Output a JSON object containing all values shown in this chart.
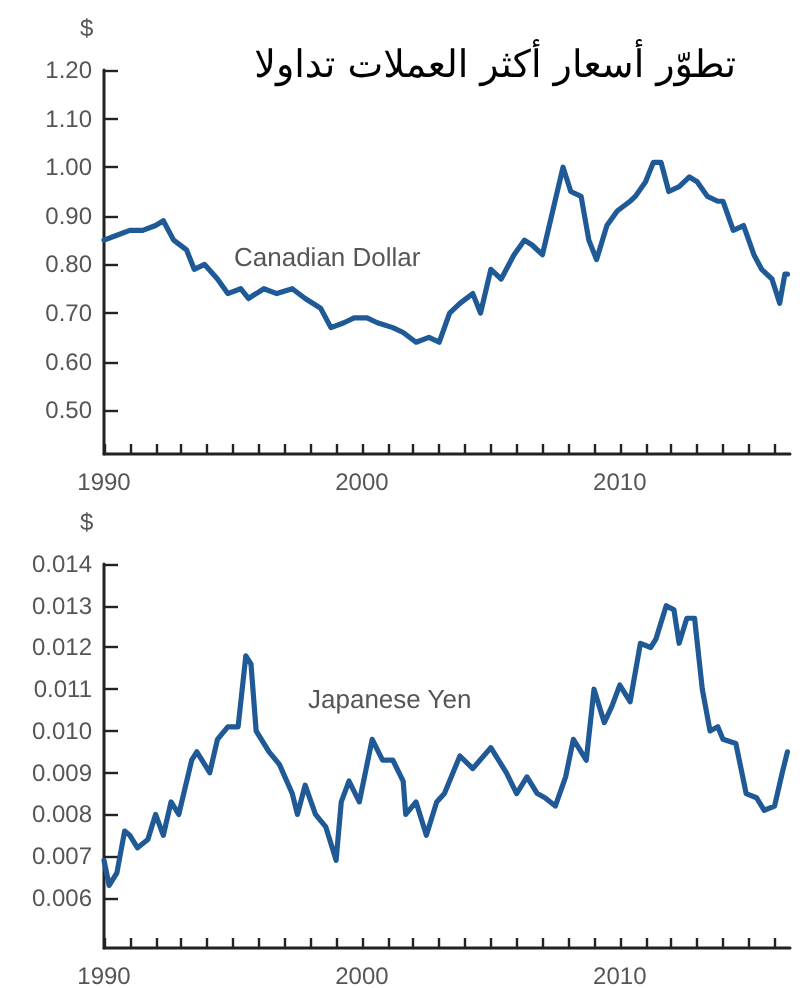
{
  "chart_data": [
    {
      "type": "line",
      "title": "تطوّر أسعار أكثر العملات تداولا",
      "ylabel": "$",
      "xlim": [
        1990,
        2016.6
      ],
      "ylim": [
        0.41,
        1.2
      ],
      "xticks": [
        1990,
        {
          "value": 1991,
          "label": null
        },
        {
          "value": 1992,
          "label": null
        },
        {
          "value": 1993,
          "label": null
        },
        {
          "value": 1994,
          "label": null
        },
        {
          "value": 1995,
          "label": null
        },
        {
          "value": 1996,
          "label": null
        },
        {
          "value": 1997,
          "label": null
        },
        {
          "value": 1998,
          "label": null
        },
        {
          "value": 1999,
          "label": null
        },
        2000,
        {
          "value": 2001,
          "label": null
        },
        {
          "value": 2002,
          "label": null
        },
        {
          "value": 2003,
          "label": null
        },
        {
          "value": 2004,
          "label": null
        },
        {
          "value": 2005,
          "label": null
        },
        {
          "value": 2006,
          "label": null
        },
        {
          "value": 2007,
          "label": null
        },
        {
          "value": 2008,
          "label": null
        },
        {
          "value": 2009,
          "label": null
        },
        2010,
        {
          "value": 2011,
          "label": null
        },
        {
          "value": 2012,
          "label": null
        },
        {
          "value": 2013,
          "label": null
        },
        {
          "value": 2014,
          "label": null
        },
        {
          "value": 2015,
          "label": null
        },
        {
          "value": 2016,
          "label": null
        }
      ],
      "yticks": [
        {
          "value": 0.5,
          "label": "0.50"
        },
        {
          "value": 0.6,
          "label": "0.60"
        },
        {
          "value": 0.7,
          "label": "0.70"
        },
        {
          "value": 0.8,
          "label": "0.80"
        },
        {
          "value": 0.9,
          "label": "0.90"
        },
        {
          "value": 1.0,
          "label": "1.00"
        },
        {
          "value": 1.1,
          "label": "1.10"
        },
        {
          "value": 1.2,
          "label": "1.20"
        }
      ],
      "grid": false,
      "legend": false,
      "marker": "none",
      "line_style": "solid",
      "series": [
        {
          "name": "Canadian Dollar",
          "color": "#1f5a96",
          "x": [
            1990,
            1990.5,
            1991,
            1991.5,
            1992,
            1992.3,
            1992.7,
            1993.2,
            1993.5,
            1993.9,
            1994.4,
            1994.8,
            1995.3,
            1995.6,
            1996.2,
            1996.7,
            1997.3,
            1997.8,
            1998.4,
            1998.8,
            1999.3,
            1999.7,
            2000.2,
            2000.6,
            2001.2,
            2001.6,
            2002.1,
            2002.6,
            2003.0,
            2003.4,
            2003.8,
            2004.3,
            2004.6,
            2005.0,
            2005.4,
            2005.9,
            2006.3,
            2006.6,
            2007.0,
            2007.4,
            2007.8,
            2008.1,
            2008.5,
            2008.8,
            2009.1,
            2009.5,
            2009.9,
            2010.4,
            2010.6,
            2011.0,
            2011.3,
            2011.6,
            2011.9,
            2012.3,
            2012.7,
            2013.0,
            2013.4,
            2013.8,
            2014.0,
            2014.4,
            2014.8,
            2015.2,
            2015.5,
            2015.9,
            2016.2,
            2016.4,
            2016.5
          ],
          "values": [
            0.85,
            0.86,
            0.87,
            0.87,
            0.88,
            0.89,
            0.85,
            0.83,
            0.79,
            0.8,
            0.77,
            0.74,
            0.75,
            0.73,
            0.75,
            0.74,
            0.75,
            0.73,
            0.71,
            0.67,
            0.68,
            0.69,
            0.69,
            0.68,
            0.67,
            0.66,
            0.64,
            0.65,
            0.64,
            0.7,
            0.72,
            0.74,
            0.7,
            0.79,
            0.77,
            0.82,
            0.85,
            0.84,
            0.82,
            0.91,
            1.0,
            0.95,
            0.94,
            0.85,
            0.81,
            0.88,
            0.91,
            0.93,
            0.94,
            0.97,
            1.01,
            1.01,
            0.95,
            0.96,
            0.98,
            0.97,
            0.94,
            0.93,
            0.93,
            0.87,
            0.88,
            0.82,
            0.79,
            0.77,
            0.72,
            0.78,
            0.78
          ]
        }
      ]
    },
    {
      "type": "line",
      "ylabel": "$",
      "xlim": [
        1990,
        2016.6
      ],
      "ylim": [
        0.0048,
        0.014
      ],
      "xticks": [
        1990,
        {
          "value": 1991,
          "label": null
        },
        {
          "value": 1992,
          "label": null
        },
        {
          "value": 1993,
          "label": null
        },
        {
          "value": 1994,
          "label": null
        },
        {
          "value": 1995,
          "label": null
        },
        {
          "value": 1996,
          "label": null
        },
        {
          "value": 1997,
          "label": null
        },
        {
          "value": 1998,
          "label": null
        },
        {
          "value": 1999,
          "label": null
        },
        2000,
        {
          "value": 2001,
          "label": null
        },
        {
          "value": 2002,
          "label": null
        },
        {
          "value": 2003,
          "label": null
        },
        {
          "value": 2004,
          "label": null
        },
        {
          "value": 2005,
          "label": null
        },
        {
          "value": 2006,
          "label": null
        },
        {
          "value": 2007,
          "label": null
        },
        {
          "value": 2008,
          "label": null
        },
        {
          "value": 2009,
          "label": null
        },
        2010,
        {
          "value": 2011,
          "label": null
        },
        {
          "value": 2012,
          "label": null
        },
        {
          "value": 2013,
          "label": null
        },
        {
          "value": 2014,
          "label": null
        },
        {
          "value": 2015,
          "label": null
        },
        {
          "value": 2016,
          "label": null
        }
      ],
      "yticks": [
        0.006,
        0.007,
        0.008,
        0.009,
        {
          "value": 0.01,
          "label": "0.010"
        },
        0.011,
        0.012,
        0.013,
        0.014
      ],
      "grid": false,
      "legend": false,
      "marker": "none",
      "line_style": "solid",
      "series": [
        {
          "name": "Japanese Yen",
          "color": "#1f5a96",
          "x": [
            1990.0,
            1990.2,
            1990.5,
            1990.8,
            1991.0,
            1991.3,
            1991.7,
            1992.0,
            1992.3,
            1992.6,
            1992.9,
            1993.4,
            1993.6,
            1994.1,
            1994.4,
            1994.8,
            1995.2,
            1995.5,
            1995.7,
            1995.9,
            1996.4,
            1996.8,
            1997.3,
            1997.5,
            1997.8,
            1998.2,
            1998.6,
            1999.0,
            1999.2,
            1999.5,
            1999.9,
            2000.3,
            2000.4,
            2000.8,
            2001.2,
            2001.6,
            2001.7,
            2002.1,
            2002.5,
            2002.9,
            2003.2,
            2003.8,
            2004.3,
            2005.0,
            2005.6,
            2006.0,
            2006.4,
            2006.8,
            2007.1,
            2007.5,
            2007.9,
            2008.2,
            2008.7,
            2009.0,
            2009.4,
            2009.7,
            2010.0,
            2010.4,
            2010.8,
            2011.2,
            2011.4,
            2011.8,
            2012.1,
            2012.3,
            2012.6,
            2012.9,
            2013.2,
            2013.5,
            2013.8,
            2014.0,
            2014.5,
            2014.9,
            2015.3,
            2015.6,
            2016.0,
            2016.3,
            2016.5
          ],
          "values": [
            0.0069,
            0.0063,
            0.0066,
            0.0076,
            0.0075,
            0.0072,
            0.0074,
            0.008,
            0.0075,
            0.0083,
            0.008,
            0.0093,
            0.0095,
            0.009,
            0.0098,
            0.0101,
            0.0101,
            0.0118,
            0.0116,
            0.01,
            0.0095,
            0.0092,
            0.0085,
            0.008,
            0.0087,
            0.008,
            0.0077,
            0.0069,
            0.0083,
            0.0088,
            0.0083,
            0.0095,
            0.0098,
            0.0093,
            0.0093,
            0.0088,
            0.008,
            0.0083,
            0.0075,
            0.0083,
            0.0085,
            0.0094,
            0.0091,
            0.0096,
            0.009,
            0.0085,
            0.0089,
            0.0085,
            0.0084,
            0.0082,
            0.0089,
            0.0098,
            0.0093,
            0.011,
            0.0102,
            0.0106,
            0.0111,
            0.0107,
            0.0121,
            0.012,
            0.0122,
            0.013,
            0.0129,
            0.0121,
            0.0127,
            0.0127,
            0.011,
            0.01,
            0.0101,
            0.0098,
            0.0097,
            0.0085,
            0.0084,
            0.0081,
            0.0082,
            0.009,
            0.0095
          ]
        }
      ]
    }
  ]
}
